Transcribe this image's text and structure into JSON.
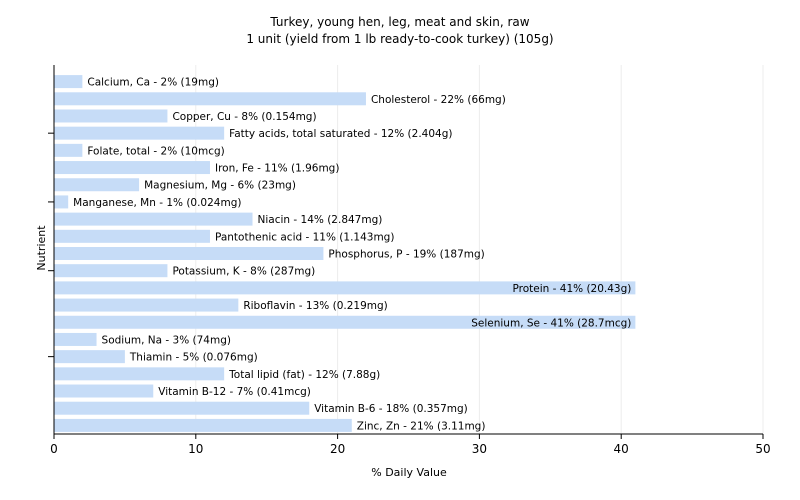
{
  "chart_data": {
    "type": "bar",
    "orientation": "horizontal",
    "title": "Turkey, young hen, leg, meat and skin, raw",
    "subtitle": "1 unit (yield from 1 lb ready-to-cook turkey) (105g)",
    "xlabel": "% Daily Value",
    "ylabel": "Nutrient",
    "xlim": [
      0,
      50
    ],
    "xticks": [
      0,
      10,
      20,
      30,
      40,
      50
    ],
    "grid": true,
    "bar_color": "#c6dcf7",
    "categories": [
      "Calcium, Ca",
      "Cholesterol",
      "Copper, Cu",
      "Fatty acids, total saturated",
      "Folate, total",
      "Iron, Fe",
      "Magnesium, Mg",
      "Manganese, Mn",
      "Niacin",
      "Pantothenic acid",
      "Phosphorus, P",
      "Potassium, K",
      "Protein",
      "Riboflavin",
      "Selenium, Se",
      "Sodium, Na",
      "Thiamin",
      "Total lipid (fat)",
      "Vitamin B-12",
      "Vitamin B-6",
      "Zinc, Zn"
    ],
    "values": [
      2,
      22,
      8,
      12,
      2,
      11,
      6,
      1,
      14,
      11,
      19,
      8,
      41,
      13,
      41,
      3,
      5,
      12,
      7,
      18,
      21
    ],
    "labels": [
      "Calcium, Ca - 2% (19mg)",
      "Cholesterol - 22% (66mg)",
      "Copper, Cu - 8% (0.154mg)",
      "Fatty acids, total saturated - 12% (2.404g)",
      "Folate, total - 2% (10mcg)",
      "Iron, Fe - 11% (1.96mg)",
      "Magnesium, Mg - 6% (23mg)",
      "Manganese, Mn - 1% (0.024mg)",
      "Niacin - 14% (2.847mg)",
      "Pantothenic acid - 11% (1.143mg)",
      "Phosphorus, P - 19% (187mg)",
      "Potassium, K - 8% (287mg)",
      "Protein - 41% (20.43g)",
      "Riboflavin - 13% (0.219mg)",
      "Selenium, Se - 41% (28.7mcg)",
      "Sodium, Na - 3% (74mg)",
      "Thiamin - 5% (0.076mg)",
      "Total lipid (fat) - 12% (7.88g)",
      "Vitamin B-12 - 7% (0.41mcg)",
      "Vitamin B-6 - 18% (0.357mg)",
      "Zinc, Zn - 21% (3.11mg)"
    ]
  }
}
